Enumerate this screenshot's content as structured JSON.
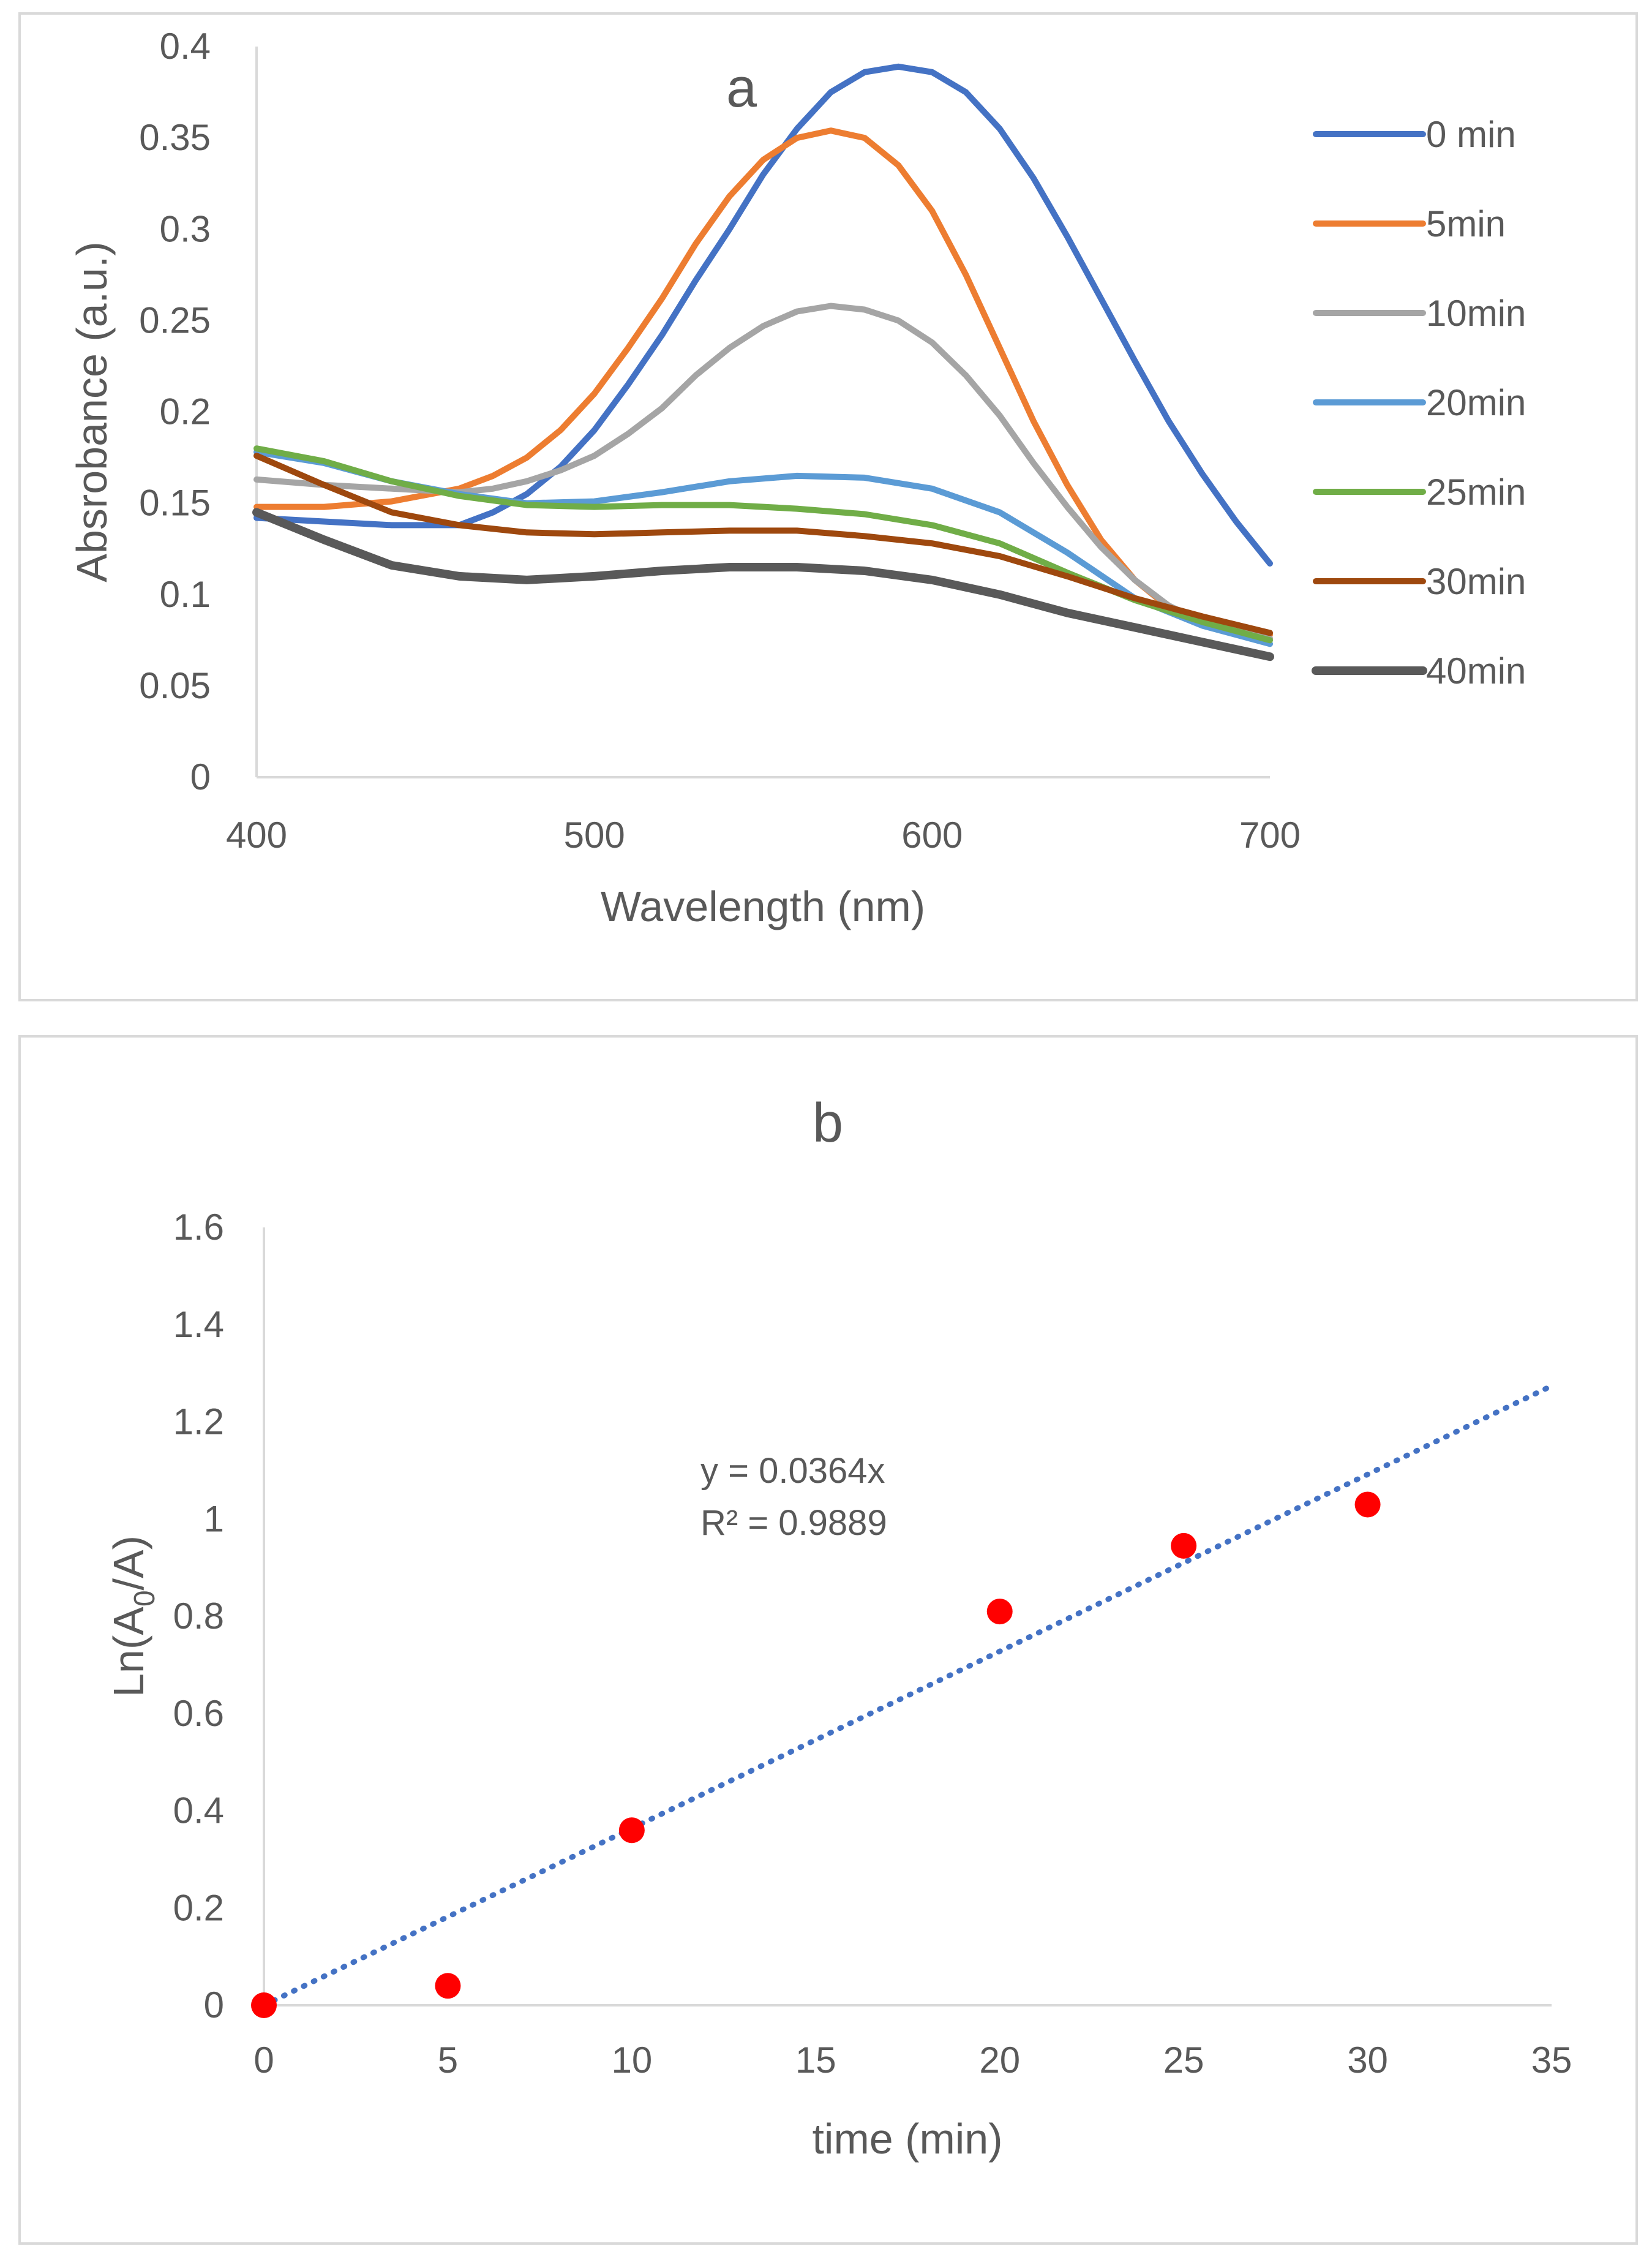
{
  "chart_data": [
    {
      "id": "a",
      "type": "line",
      "title": "a",
      "xlabel": "Wavelength (nm)",
      "ylabel": "Absrobance (a.u.)",
      "xlim": [
        400,
        700
      ],
      "ylim": [
        0,
        0.4
      ],
      "xticks": [
        "400",
        "500",
        "600",
        "700"
      ],
      "yticks": [
        "0",
        "0.05",
        "0.1",
        "0.15",
        "0.2",
        "0.25",
        "0.3",
        "0.35",
        "0.4"
      ],
      "grid": false,
      "legend": "right",
      "series": [
        {
          "name": "0 min",
          "color": "#4472c4",
          "x": [
            400,
            420,
            440,
            460,
            470,
            480,
            490,
            500,
            510,
            520,
            530,
            540,
            550,
            560,
            570,
            580,
            590,
            600,
            610,
            620,
            630,
            640,
            650,
            660,
            670,
            680,
            690,
            700
          ],
          "y": [
            0.142,
            0.14,
            0.138,
            0.138,
            0.145,
            0.155,
            0.17,
            0.19,
            0.215,
            0.242,
            0.272,
            0.3,
            0.33,
            0.355,
            0.375,
            0.386,
            0.389,
            0.386,
            0.375,
            0.355,
            0.328,
            0.296,
            0.262,
            0.228,
            0.195,
            0.166,
            0.14,
            0.117
          ]
        },
        {
          "name": "5min",
          "color": "#ed7d31",
          "x": [
            400,
            420,
            440,
            460,
            470,
            480,
            490,
            500,
            510,
            520,
            530,
            540,
            550,
            560,
            570,
            580,
            590,
            600,
            610,
            620,
            630,
            640,
            650,
            660,
            670,
            680,
            690,
            700
          ],
          "y": [
            0.148,
            0.148,
            0.151,
            0.158,
            0.165,
            0.175,
            0.19,
            0.21,
            0.235,
            0.262,
            0.292,
            0.318,
            0.338,
            0.35,
            0.354,
            0.35,
            0.335,
            0.31,
            0.275,
            0.235,
            0.195,
            0.16,
            0.13,
            0.108,
            0.093,
            0.084,
            0.08,
            0.078
          ]
        },
        {
          "name": "10min",
          "color": "#a5a5a5",
          "x": [
            400,
            420,
            440,
            460,
            470,
            480,
            490,
            500,
            510,
            520,
            530,
            540,
            550,
            560,
            570,
            580,
            590,
            600,
            610,
            620,
            630,
            640,
            650,
            660,
            670,
            680,
            690,
            700
          ],
          "y": [
            0.163,
            0.16,
            0.158,
            0.156,
            0.158,
            0.162,
            0.168,
            0.176,
            0.188,
            0.202,
            0.22,
            0.235,
            0.247,
            0.255,
            0.258,
            0.256,
            0.25,
            0.238,
            0.22,
            0.198,
            0.172,
            0.148,
            0.126,
            0.108,
            0.094,
            0.085,
            0.08,
            0.076
          ]
        },
        {
          "name": "20min",
          "color": "#5b9bd5",
          "x": [
            400,
            420,
            440,
            460,
            480,
            500,
            520,
            540,
            560,
            580,
            600,
            620,
            640,
            660,
            680,
            700
          ],
          "y": [
            0.178,
            0.172,
            0.162,
            0.155,
            0.15,
            0.151,
            0.156,
            0.162,
            0.165,
            0.164,
            0.158,
            0.145,
            0.123,
            0.098,
            0.083,
            0.073
          ]
        },
        {
          "name": "25min",
          "color": "#70ad47",
          "x": [
            400,
            420,
            440,
            460,
            480,
            500,
            520,
            540,
            560,
            580,
            600,
            620,
            640,
            660,
            680,
            700
          ],
          "y": [
            0.18,
            0.173,
            0.162,
            0.154,
            0.149,
            0.148,
            0.149,
            0.149,
            0.147,
            0.144,
            0.138,
            0.128,
            0.112,
            0.097,
            0.085,
            0.075
          ]
        },
        {
          "name": "30min",
          "color": "#9e480e",
          "x": [
            400,
            420,
            440,
            460,
            480,
            500,
            520,
            540,
            560,
            580,
            600,
            620,
            640,
            660,
            680,
            700
          ],
          "y": [
            0.176,
            0.16,
            0.145,
            0.138,
            0.134,
            0.133,
            0.134,
            0.135,
            0.135,
            0.132,
            0.128,
            0.121,
            0.11,
            0.098,
            0.088,
            0.079
          ]
        },
        {
          "name": "40min",
          "color": "#595959",
          "x": [
            400,
            420,
            440,
            460,
            480,
            500,
            520,
            540,
            560,
            580,
            600,
            620,
            640,
            660,
            680,
            700
          ],
          "y": [
            0.145,
            0.13,
            0.116,
            0.11,
            0.108,
            0.11,
            0.113,
            0.115,
            0.115,
            0.113,
            0.108,
            0.1,
            0.09,
            0.082,
            0.074,
            0.066
          ]
        }
      ]
    },
    {
      "id": "b",
      "type": "scatter",
      "title": "b",
      "xlabel": "time (min)",
      "ylabel_prefix": "Ln(A",
      "ylabel_sub": "0",
      "ylabel_suffix": "/A)",
      "xlim": [
        0,
        35
      ],
      "ylim": [
        0,
        1.6
      ],
      "xticks": [
        "0",
        "5",
        "10",
        "15",
        "20",
        "25",
        "30",
        "35"
      ],
      "yticks": [
        "0",
        "0.2",
        "0.4",
        "0.6",
        "0.8",
        "1",
        "1.2",
        "1.4",
        "1.6"
      ],
      "grid": false,
      "points": {
        "x": [
          0,
          5,
          10,
          20,
          25,
          30
        ],
        "y": [
          0,
          0.04,
          0.36,
          0.81,
          0.945,
          1.03
        ],
        "color": "#ff0000"
      },
      "trendline": {
        "slope": 0.0364,
        "intercept": 0,
        "x_range": [
          0,
          35
        ],
        "color": "#4472c4",
        "style": "dotted"
      },
      "equation": "y = 0.0364x",
      "r_squared": "R² = 0.9889"
    }
  ]
}
